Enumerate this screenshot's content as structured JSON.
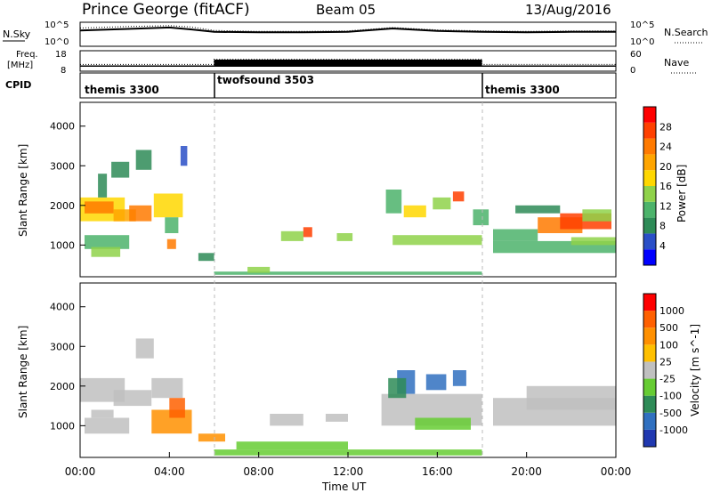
{
  "header": {
    "station": "Prince George (fitACF)",
    "beam": "Beam 05",
    "date": "13/Aug/2016"
  },
  "noise_panel": {
    "left_label": "N.Sky",
    "right_label": "N.Search",
    "left_ticks": [
      "10^5",
      "10^0"
    ],
    "right_ticks": [
      "10^5",
      "10^0"
    ]
  },
  "freq_panel": {
    "left_label_line1": "Freq.",
    "left_label_line2": "[MHz]",
    "left_ticks": [
      "18",
      "8"
    ],
    "right_label": "Nave",
    "right_ticks": [
      "60",
      "0"
    ]
  },
  "cpid_panel": {
    "label": "CPID",
    "segments": [
      {
        "name": "themis 3300",
        "start_hour": 0,
        "end_hour": 6
      },
      {
        "name": "twofsound 3503",
        "start_hour": 6,
        "end_hour": 18
      },
      {
        "name": "themis 3300",
        "start_hour": 18,
        "end_hour": 24
      }
    ]
  },
  "power_panel": {
    "ylabel": "Slant Range [km]",
    "cbar_label": "Power [dB]",
    "cbar_ticks": [
      "28",
      "24",
      "20",
      "16",
      "12",
      "8",
      "4"
    ],
    "colors": [
      "#0000ff",
      "#2a4fc7",
      "#2e8b57",
      "#4cb36b",
      "#8fd24a",
      "#ffd700",
      "#ffa500",
      "#ff7a00",
      "#ff4000",
      "#ff0000"
    ]
  },
  "velocity_panel": {
    "ylabel": "Slant Range [km]",
    "cbar_label": "Velocity [m s^-1]",
    "cbar_ticks": [
      "1000",
      "500",
      "100",
      "25",
      "-25",
      "-100",
      "-500",
      "-1000"
    ],
    "colors": [
      "#2038b0",
      "#3070c0",
      "#2e8b57",
      "#66cc33",
      "#c0c0c0",
      "#ffc000",
      "#ff9000",
      "#ff6000",
      "#ff0000"
    ]
  },
  "xaxis": {
    "label": "Time UT",
    "ticks": [
      "00:00",
      "04:00",
      "08:00",
      "12:00",
      "16:00",
      "20:00",
      "00:00"
    ]
  },
  "chart_data": [
    {
      "type": "line",
      "panel": "noise",
      "series": [
        {
          "name": "N.Sky",
          "x": [
            0,
            2,
            4,
            5,
            6,
            8,
            10,
            12,
            14,
            16,
            18,
            20,
            22,
            24
          ],
          "values": [
            3.3,
            3.6,
            3.9,
            3.5,
            3.0,
            2.9,
            2.9,
            3.0,
            3.7,
            3.2,
            3.0,
            2.9,
            3.0,
            3.0
          ]
        },
        {
          "name": "N.Search",
          "x": [
            0,
            2,
            4,
            5,
            6,
            8,
            10,
            12,
            14,
            16,
            18,
            20,
            22,
            24
          ],
          "values": [
            3.8,
            4.1,
            4.3,
            4.0,
            3.3,
            3.1,
            3.1,
            3.2,
            3.9,
            3.4,
            3.2,
            3.1,
            3.2,
            3.2
          ]
        }
      ],
      "xlim": [
        0,
        24
      ],
      "ylim": [
        0,
        5
      ]
    },
    {
      "type": "line",
      "panel": "freq_nave",
      "series": [
        {
          "name": "Freq.",
          "x": [
            0,
            24
          ],
          "values": [
            10.5,
            10.5
          ]
        },
        {
          "name": "Nave",
          "x": [
            0,
            6,
            6,
            18,
            18,
            24
          ],
          "values": [
            20,
            20,
            35,
            35,
            20,
            20
          ]
        }
      ],
      "xlim": [
        0,
        24
      ],
      "ylim_left": [
        8,
        18
      ],
      "ylim_right": [
        0,
        60
      ]
    },
    {
      "type": "heatmap",
      "panel": "power",
      "xlim": [
        0,
        24
      ],
      "ylim": [
        200,
        4600
      ],
      "cells": [
        [
          0,
          2,
          1600,
          2200,
          5
        ],
        [
          0.2,
          1.5,
          1800,
          2100,
          7
        ],
        [
          1.5,
          2.5,
          1600,
          1900,
          6
        ],
        [
          2.2,
          3.2,
          1600,
          2000,
          7
        ],
        [
          3.3,
          4.6,
          1700,
          2300,
          5
        ],
        [
          0.8,
          1.2,
          2200,
          2800,
          2
        ],
        [
          1.4,
          2.2,
          2700,
          3100,
          2
        ],
        [
          2.5,
          3.2,
          2900,
          3400,
          2
        ],
        [
          4.5,
          4.8,
          3000,
          3500,
          1
        ],
        [
          3.8,
          4.4,
          1300,
          1700,
          3
        ],
        [
          0.2,
          2.2,
          900,
          1250,
          3
        ],
        [
          0.5,
          1.8,
          700,
          950,
          4
        ],
        [
          3.9,
          4.3,
          900,
          1150,
          7
        ],
        [
          5.3,
          6.0,
          600,
          800,
          2
        ],
        [
          6,
          18,
          250,
          330,
          3
        ],
        [
          7.5,
          8.5,
          300,
          450,
          4
        ],
        [
          9.0,
          10.0,
          1100,
          1350,
          4
        ],
        [
          10.0,
          10.4,
          1200,
          1450,
          8
        ],
        [
          11.5,
          12.2,
          1100,
          1300,
          4
        ],
        [
          13.7,
          14.4,
          1800,
          2400,
          3
        ],
        [
          14.5,
          15.5,
          1700,
          2000,
          5
        ],
        [
          15.8,
          16.6,
          1900,
          2200,
          4
        ],
        [
          16.7,
          17.2,
          2100,
          2350,
          8
        ],
        [
          14,
          18,
          1000,
          1250,
          4
        ],
        [
          17.6,
          18.3,
          1500,
          1900,
          3
        ],
        [
          18.5,
          20.5,
          1100,
          1400,
          3
        ],
        [
          20.5,
          22.5,
          1300,
          1700,
          7
        ],
        [
          21.5,
          23.8,
          1400,
          1800,
          8
        ],
        [
          19.5,
          21.5,
          1800,
          2000,
          2
        ],
        [
          22.5,
          23.8,
          1600,
          1900,
          4
        ],
        [
          18.5,
          24,
          800,
          1100,
          3
        ],
        [
          22,
          24,
          1000,
          1200,
          4
        ]
      ]
    },
    {
      "type": "heatmap",
      "panel": "velocity",
      "xlim": [
        0,
        24
      ],
      "ylim": [
        200,
        4600
      ],
      "cells": [
        [
          0,
          2,
          1600,
          2200,
          4
        ],
        [
          1.5,
          3.2,
          1500,
          1900,
          4
        ],
        [
          3.2,
          4.6,
          1700,
          2200,
          4
        ],
        [
          0.2,
          2.2,
          800,
          1200,
          4
        ],
        [
          0.5,
          1.5,
          1200,
          1400,
          4
        ],
        [
          3.2,
          5.0,
          800,
          1400,
          6
        ],
        [
          4.0,
          4.7,
          1200,
          1700,
          7
        ],
        [
          5.3,
          6.5,
          600,
          800,
          6
        ],
        [
          2.5,
          3.3,
          2700,
          3200,
          4
        ],
        [
          6,
          18,
          250,
          400,
          3
        ],
        [
          7,
          12,
          400,
          600,
          3
        ],
        [
          8.5,
          10.0,
          1000,
          1300,
          4
        ],
        [
          11.0,
          12.0,
          1100,
          1300,
          4
        ],
        [
          14.2,
          15.0,
          1800,
          2400,
          1
        ],
        [
          15.5,
          16.4,
          1900,
          2300,
          1
        ],
        [
          16.7,
          17.3,
          2000,
          2400,
          1
        ],
        [
          13.5,
          18,
          1000,
          1800,
          4
        ],
        [
          15.0,
          17.5,
          900,
          1200,
          3
        ],
        [
          18.5,
          24,
          1000,
          1700,
          4
        ],
        [
          20.0,
          24,
          1400,
          2000,
          4
        ],
        [
          13.8,
          14.6,
          1700,
          2200,
          2
        ]
      ]
    }
  ]
}
